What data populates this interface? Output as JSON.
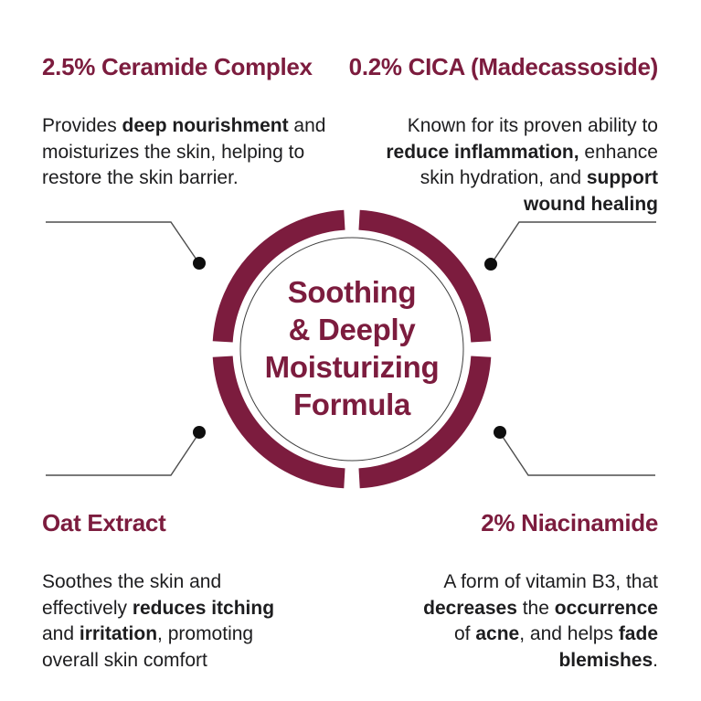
{
  "theme": {
    "maroon": "#7c1c3e",
    "ink": "#1d1d1f",
    "line": "#4d4d4d",
    "dot": "#0e0e0e",
    "bg": "#ffffff"
  },
  "center": {
    "lines": [
      "Soothing",
      "& Deeply",
      "Moisturizing",
      "Formula"
    ]
  },
  "ingredients": [
    {
      "position": "top-left",
      "title": "2.5% Ceramide Complex",
      "lines": [
        [
          {
            "t": "Provides "
          },
          {
            "t": "deep nourishment",
            "b": true
          },
          {
            "t": " and"
          }
        ],
        [
          {
            "t": "moisturizes the skin, helping to"
          }
        ],
        [
          {
            "t": "restore the skin barrier."
          }
        ]
      ]
    },
    {
      "position": "top-right",
      "title": "0.2% CICA (Madecassoside)",
      "lines": [
        [
          {
            "t": "Known for its proven ability to"
          }
        ],
        [
          {
            "t": "reduce inflammation,",
            "b": true
          },
          {
            "t": " enhance"
          }
        ],
        [
          {
            "t": "skin hydration, and "
          },
          {
            "t": "support",
            "b": true
          }
        ],
        [
          {
            "t": "wound healing",
            "b": true
          }
        ]
      ]
    },
    {
      "position": "bottom-left",
      "title": "Oat Extract",
      "lines": [
        [
          {
            "t": "Soothes the skin and"
          }
        ],
        [
          {
            "t": "effectively "
          },
          {
            "t": "reduces itching",
            "b": true
          }
        ],
        [
          {
            "t": "and "
          },
          {
            "t": "irritation",
            "b": true
          },
          {
            "t": ", promoting"
          }
        ],
        [
          {
            "t": "overall skin comfort"
          }
        ]
      ]
    },
    {
      "position": "bottom-right",
      "title": "2% Niacinamide",
      "lines": [
        [
          {
            "t": "A form of vitamin B3, that"
          }
        ],
        [
          {
            "t": "decreases",
            "b": true
          },
          {
            "t": " the "
          },
          {
            "t": "occurrence",
            "b": true
          }
        ],
        [
          {
            "t": "of "
          },
          {
            "t": "acne",
            "b": true
          },
          {
            "t": ", and helps "
          },
          {
            "t": "fade",
            "b": true
          }
        ],
        [
          {
            "t": "blemishes",
            "b": true
          },
          {
            "t": "."
          }
        ]
      ]
    }
  ]
}
